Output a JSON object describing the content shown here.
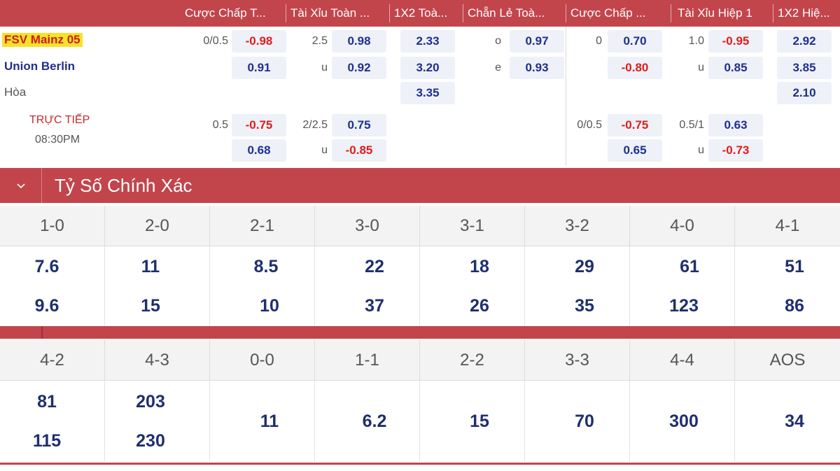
{
  "header": {
    "columns": [
      "Cược Chấp T...",
      "Tài Xỉu Toàn ...",
      "1X2 Toà...",
      "Chẵn Lẻ Toà...",
      "Cược Chấp ...",
      "Tài Xỉu Hiệp 1",
      "1X2 Hiệ..."
    ]
  },
  "match": {
    "home": "FSV Mainz 05",
    "away": "Union Berlin",
    "draw": "Hòa",
    "status": "TRỰC TIẾP",
    "time": "08:30PM"
  },
  "row1": {
    "hdp_line": "0/0.5",
    "hdp_home": "-0.98",
    "hdp_away": "0.91",
    "ou_line": "2.5",
    "ou_over": "0.98",
    "ou_u": "u",
    "ou_under": "0.92",
    "x12_home": "2.33",
    "x12_away": "3.20",
    "x12_draw": "3.35",
    "oe_o": "o",
    "oe_odd": "0.97",
    "oe_e": "e",
    "oe_even": "0.93",
    "h1_hdp_line": "0",
    "h1_hdp_home": "0.70",
    "h1_hdp_away": "-0.80",
    "h1_ou_line": "1.0",
    "h1_ou_over": "-0.95",
    "h1_ou_u": "u",
    "h1_ou_under": "0.85",
    "h1_x12_home": "2.92",
    "h1_x12_away": "3.85",
    "h1_x12_draw": "2.10"
  },
  "row2": {
    "hdp_line": "0.5",
    "hdp_home": "-0.75",
    "hdp_away": "0.68",
    "ou_line": "2/2.5",
    "ou_over": "0.75",
    "ou_u": "u",
    "ou_under": "-0.85",
    "h1_hdp_line": "0/0.5",
    "h1_hdp_home": "-0.75",
    "h1_hdp_away": "0.65",
    "h1_ou_line": "0.5/1",
    "h1_ou_over": "0.63",
    "h1_ou_u": "u",
    "h1_ou_under": "-0.73"
  },
  "correct_score": {
    "title": "Tỷ Số Chính Xác",
    "set1": {
      "scores": [
        "1-0",
        "2-0",
        "2-1",
        "3-0",
        "3-1",
        "3-2",
        "4-0",
        "4-1"
      ],
      "home": [
        "7.6",
        "11",
        "8.5",
        "22",
        "18",
        "29",
        "61",
        "51"
      ],
      "away": [
        "9.6",
        "15",
        "10",
        "37",
        "26",
        "35",
        "123",
        "86"
      ]
    },
    "set2": {
      "scores": [
        "4-2",
        "4-3",
        "0-0",
        "1-1",
        "2-2",
        "3-3",
        "4-4",
        "AOS"
      ],
      "home": [
        "81",
        "203"
      ],
      "away": [
        "115",
        "230"
      ],
      "single": [
        "11",
        "6.2",
        "15",
        "70",
        "300",
        "34"
      ]
    }
  }
}
